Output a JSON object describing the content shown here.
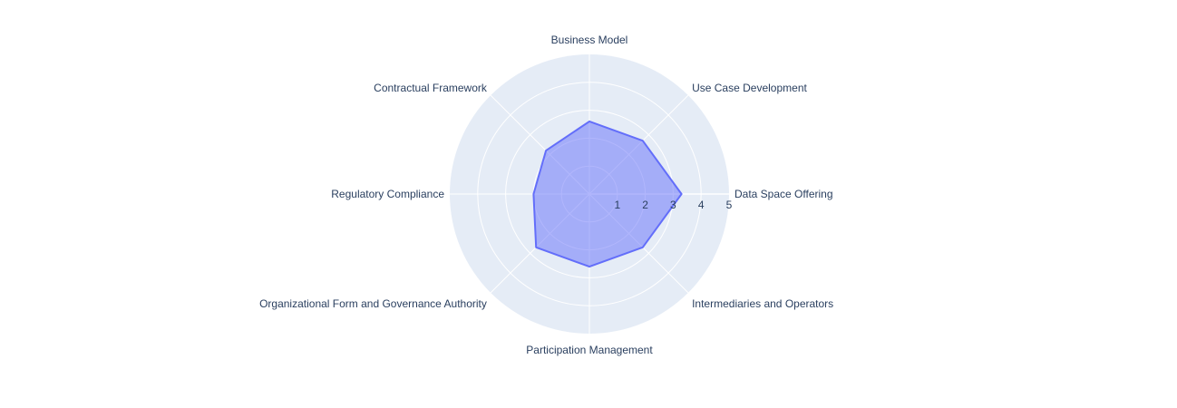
{
  "chart_data": {
    "type": "radar",
    "categories": [
      "Data Space Offering",
      "Use Case Development",
      "Business Model",
      "Contractual Framework",
      "Regulatory Compliance",
      "Organizational Form and Governance Authority",
      "Participation Management",
      "Intermediaries and Operators"
    ],
    "values": [
      3.3,
      2.7,
      2.6,
      2.2,
      2.0,
      2.7,
      2.6,
      2.7
    ],
    "rlim": [
      0,
      5
    ],
    "rticks": [
      "1",
      "2",
      "3",
      "4",
      "5"
    ],
    "grid": true,
    "colors": {
      "polar_bg": "#e5ecf6",
      "grid": "#ffffff",
      "fill": "#636efa",
      "line": "#636efa",
      "text": "#2a3f5f"
    }
  }
}
